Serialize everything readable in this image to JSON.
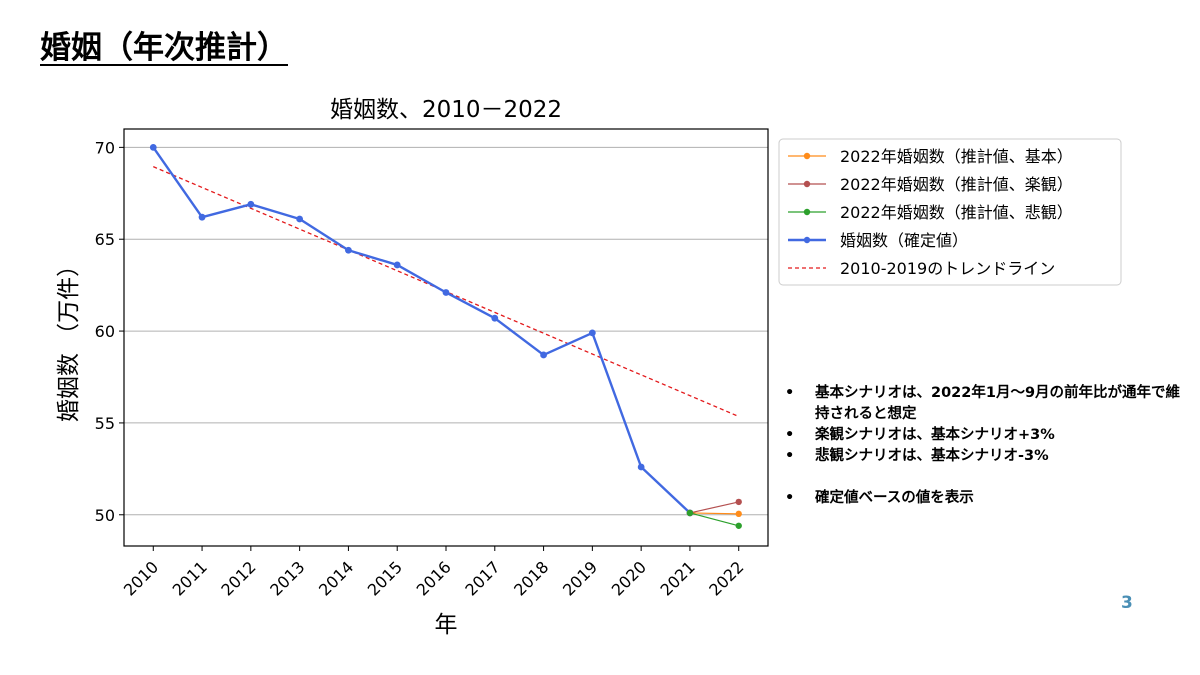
{
  "slide": {
    "title": "婚姻（年次推計）",
    "page_number": "3"
  },
  "notes": [
    "基本シナリオは、2022年1月～9月の前年比が通年で維持されると想定",
    "楽観シナリオは、基本シナリオ+3%",
    "悲観シナリオは、基本シナリオ-3%",
    "確定値ベースの値を表示"
  ],
  "chart_data": {
    "type": "line",
    "title": "婚姻数、2010－2022",
    "xlabel": "年",
    "ylabel": "婚姻数 （万件）",
    "categories": [
      "2010",
      "2011",
      "2012",
      "2013",
      "2014",
      "2015",
      "2016",
      "2017",
      "2018",
      "2019",
      "2020",
      "2021",
      "2022"
    ],
    "xlim": [
      2009.4,
      2022.6
    ],
    "ylim": [
      48.3,
      71.0
    ],
    "yticks": [
      50,
      55,
      60,
      65,
      70
    ],
    "grid": "horizontal",
    "legend_position": "outside-right-top",
    "series": [
      {
        "name": "2022年婚姻数（推計値、基本）",
        "color": "#ff8c1a",
        "style": "solid-marker",
        "x": [
          2021,
          2022
        ],
        "y": [
          50.1,
          50.05
        ]
      },
      {
        "name": "2022年婚姻数（推計値、楽観）",
        "color": "#b45050",
        "style": "solid-marker",
        "x": [
          2021,
          2022
        ],
        "y": [
          50.1,
          50.7
        ]
      },
      {
        "name": "2022年婚姻数（推計値、悲観）",
        "color": "#2ca02c",
        "style": "solid-marker",
        "x": [
          2021,
          2022
        ],
        "y": [
          50.1,
          49.4
        ]
      },
      {
        "name": "婚姻数（確定値）",
        "color": "#4169e1",
        "style": "solid-marker-thick",
        "x": [
          2010,
          2011,
          2012,
          2013,
          2014,
          2015,
          2016,
          2017,
          2018,
          2019,
          2020,
          2021
        ],
        "y": [
          70.0,
          66.2,
          66.9,
          66.1,
          64.4,
          63.6,
          62.1,
          60.7,
          58.7,
          59.9,
          52.6,
          50.1
        ]
      },
      {
        "name": "2010-2019のトレンドライン",
        "color": "#e31a1c",
        "style": "dashed",
        "x": [
          2010,
          2022
        ],
        "y": [
          68.95,
          55.35
        ]
      }
    ]
  }
}
